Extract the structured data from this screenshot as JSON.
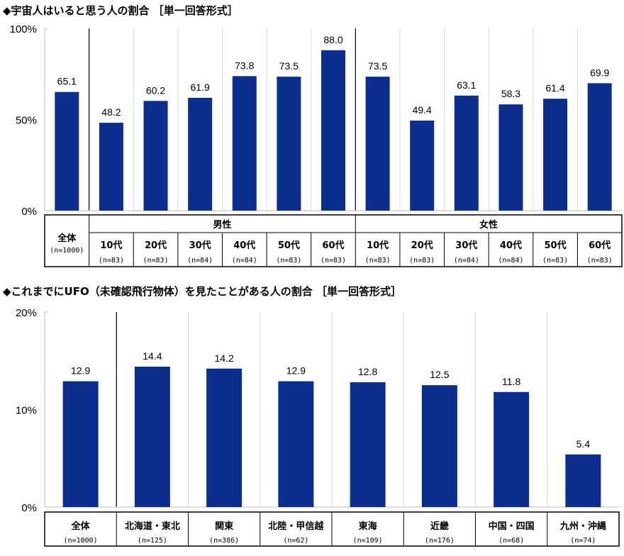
{
  "chart_data": [
    {
      "type": "bar",
      "title": "◆宇宙人はいると思う人の割合 ［単一回答形式］",
      "ylim": [
        0,
        100
      ],
      "yticks": [
        "0%",
        "50%",
        "100%"
      ],
      "grid": "vertical category separators",
      "bar_color": "#0b2e8f",
      "total": {
        "label": "全体",
        "n": "(n=1000)",
        "value": 65.1,
        "value_label": "65.1"
      },
      "groups": [
        {
          "label": "男性",
          "categories": [
            {
              "label": "10代",
              "n": "(n=83)",
              "value": 48.2,
              "value_label": "48.2"
            },
            {
              "label": "20代",
              "n": "(n=83)",
              "value": 60.2,
              "value_label": "60.2"
            },
            {
              "label": "30代",
              "n": "(n=84)",
              "value": 61.9,
              "value_label": "61.9"
            },
            {
              "label": "40代",
              "n": "(n=84)",
              "value": 73.8,
              "value_label": "73.8"
            },
            {
              "label": "50代",
              "n": "(n=83)",
              "value": 73.5,
              "value_label": "73.5"
            },
            {
              "label": "60代",
              "n": "(n=83)",
              "value": 88.0,
              "value_label": "88.0"
            }
          ]
        },
        {
          "label": "女性",
          "categories": [
            {
              "label": "10代",
              "n": "(n=83)",
              "value": 73.5,
              "value_label": "73.5"
            },
            {
              "label": "20代",
              "n": "(n=83)",
              "value": 49.4,
              "value_label": "49.4"
            },
            {
              "label": "30代",
              "n": "(n=84)",
              "value": 63.1,
              "value_label": "63.1"
            },
            {
              "label": "40代",
              "n": "(n=84)",
              "value": 58.3,
              "value_label": "58.3"
            },
            {
              "label": "50代",
              "n": "(n=83)",
              "value": 61.4,
              "value_label": "61.4"
            },
            {
              "label": "60代",
              "n": "(n=83)",
              "value": 69.9,
              "value_label": "69.9"
            }
          ]
        }
      ]
    },
    {
      "type": "bar",
      "title": "◆これまでにUFO（未確認飛行物体）を見たことがある人の割合 ［単一回答形式］",
      "ylim": [
        0,
        20
      ],
      "yticks": [
        "0%",
        "10%",
        "20%"
      ],
      "grid": "vertical category separators",
      "bar_color": "#0b2e8f",
      "categories": [
        {
          "label": "全体",
          "n": "(n=1000)",
          "value": 12.9,
          "value_label": "12.9"
        },
        {
          "label": "北海道・東北",
          "n": "(n=125)",
          "value": 14.4,
          "value_label": "14.4"
        },
        {
          "label": "関東",
          "n": "(n=386)",
          "value": 14.2,
          "value_label": "14.2"
        },
        {
          "label": "北陸・甲信越",
          "n": "(n=62)",
          "value": 12.9,
          "value_label": "12.9"
        },
        {
          "label": "東海",
          "n": "(n=109)",
          "value": 12.8,
          "value_label": "12.8"
        },
        {
          "label": "近畿",
          "n": "(n=176)",
          "value": 12.5,
          "value_label": "12.5"
        },
        {
          "label": "中国・四国",
          "n": "(n=68)",
          "value": 11.8,
          "value_label": "11.8"
        },
        {
          "label": "九州・沖縄",
          "n": "(n=74)",
          "value": 5.4,
          "value_label": "5.4"
        }
      ]
    }
  ]
}
